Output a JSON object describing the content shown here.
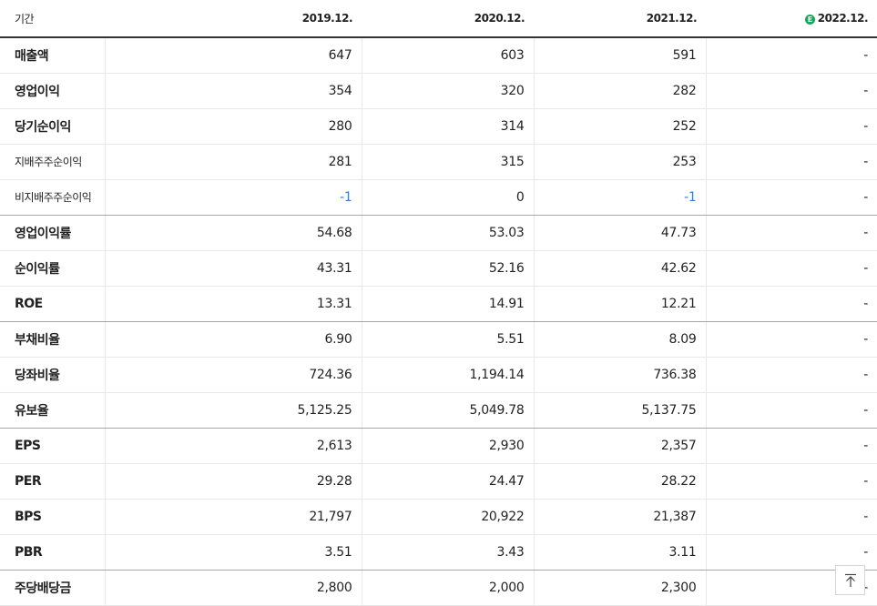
{
  "header": {
    "label": "기간",
    "periods": [
      "2019.12.",
      "2020.12.",
      "2021.12.",
      "2022.12."
    ],
    "estimate_icon": "E"
  },
  "rows": [
    {
      "label": "매출액",
      "values": [
        "647",
        "603",
        "591",
        "-"
      ]
    },
    {
      "label": "영업이익",
      "values": [
        "354",
        "320",
        "282",
        "-"
      ]
    },
    {
      "label": "당기순이익",
      "values": [
        "280",
        "314",
        "252",
        "-"
      ]
    },
    {
      "label": "지배주주순이익",
      "values": [
        "281",
        "315",
        "253",
        "-"
      ]
    },
    {
      "label": "비지배주주순이익",
      "values": [
        "-1",
        "0",
        "-1",
        "-"
      ]
    },
    {
      "label": "영업이익률",
      "values": [
        "54.68",
        "53.03",
        "47.73",
        "-"
      ]
    },
    {
      "label": "순이익률",
      "values": [
        "43.31",
        "52.16",
        "42.62",
        "-"
      ]
    },
    {
      "label": "ROE",
      "values": [
        "13.31",
        "14.91",
        "12.21",
        "-"
      ]
    },
    {
      "label": "부채비율",
      "values": [
        "6.90",
        "5.51",
        "8.09",
        "-"
      ]
    },
    {
      "label": "당좌비율",
      "values": [
        "724.36",
        "1,194.14",
        "736.38",
        "-"
      ]
    },
    {
      "label": "유보율",
      "values": [
        "5,125.25",
        "5,049.78",
        "5,137.75",
        "-"
      ]
    },
    {
      "label": "EPS",
      "values": [
        "2,613",
        "2,930",
        "2,357",
        "-"
      ]
    },
    {
      "label": "PER",
      "values": [
        "29.28",
        "24.47",
        "28.22",
        "-"
      ]
    },
    {
      "label": "BPS",
      "values": [
        "21,797",
        "20,922",
        "21,387",
        "-"
      ]
    },
    {
      "label": "PBR",
      "values": [
        "3.51",
        "3.43",
        "3.11",
        "-"
      ]
    },
    {
      "label": "주당배당금",
      "values": [
        "2,800",
        "2,000",
        "2,300",
        "-"
      ]
    }
  ],
  "icons": {
    "estimate": "estimate-icon",
    "top": "arrow-up-icon"
  },
  "colors": {
    "negative": "#2f80d1",
    "estimate": "#1aa55c"
  }
}
